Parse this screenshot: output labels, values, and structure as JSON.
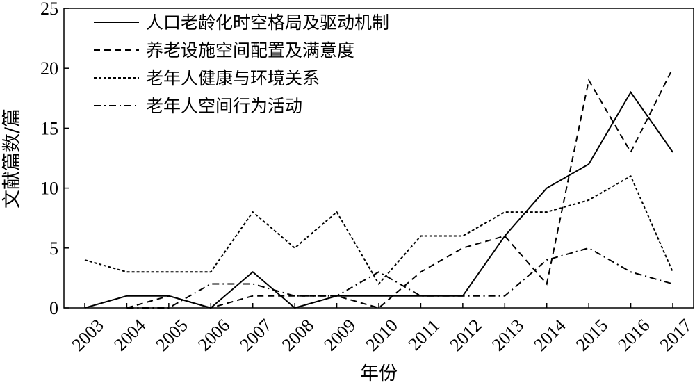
{
  "chart_data": {
    "type": "line",
    "xlabel": "年份",
    "ylabel": "文献篇数/篇",
    "categories": [
      "2003",
      "2004",
      "2005",
      "2006",
      "2007",
      "2008",
      "2009",
      "2010",
      "2011",
      "2012",
      "2013",
      "2014",
      "2015",
      "2016",
      "2017"
    ],
    "ylim": [
      0,
      25
    ],
    "yticks": [
      0,
      5,
      10,
      15,
      20,
      25
    ],
    "legend": "upper-left",
    "series": [
      {
        "name": "人口老龄化时空格局及驱动机制",
        "color": "#000000",
        "style": "solid",
        "values": [
          0,
          1,
          1,
          0,
          3,
          0,
          1,
          1,
          1,
          1,
          6,
          10,
          12,
          18,
          13
        ]
      },
      {
        "name": "养老设施空间配置及满意度",
        "color": "#000000",
        "style": "dashed",
        "values": [
          null,
          0,
          1,
          0,
          1,
          1,
          1,
          0,
          3,
          5,
          6,
          2,
          19,
          13,
          20
        ]
      },
      {
        "name": "老年人健康与环境关系",
        "color": "#000000",
        "style": "dotted",
        "values": [
          4,
          3,
          3,
          3,
          8,
          5,
          8,
          2,
          6,
          6,
          8,
          8,
          9,
          11,
          3
        ]
      },
      {
        "name": "老年人空间行为活动",
        "color": "#000000",
        "style": "dashdot",
        "values": [
          null,
          0,
          0,
          2,
          2,
          1,
          1,
          3,
          1,
          1,
          1,
          4,
          5,
          3,
          2
        ]
      }
    ]
  }
}
